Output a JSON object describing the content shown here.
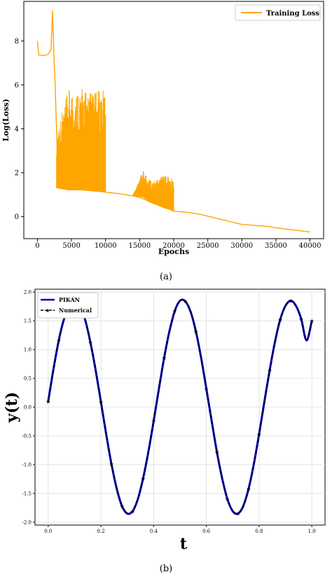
{
  "chart_data": [
    {
      "type": "line",
      "panel_label": "(a)",
      "xlabel": "Epochs",
      "ylabel": "Log(Loss)",
      "xlim": [
        -2000,
        42000
      ],
      "ylim": [
        -1.0,
        9.8
      ],
      "xticks": [
        0,
        5000,
        10000,
        15000,
        20000,
        25000,
        30000,
        35000,
        40000
      ],
      "yticks": [
        0,
        2,
        4,
        6,
        8
      ],
      "legend_position": "top-right",
      "grid": false,
      "series": [
        {
          "name": "Training Loss",
          "color": "#ffa500",
          "x": [
            0,
            200,
            400,
            800,
            1200,
            1600,
            2000,
            2200,
            2400,
            2600,
            2800,
            3000,
            3200,
            3500,
            4000,
            5000,
            6000,
            7000,
            8000,
            9000,
            10000,
            11000,
            12000,
            13000,
            14000,
            15000,
            16000,
            17000,
            18000,
            19000,
            20000,
            22000,
            24000,
            26000,
            28000,
            30000,
            32000,
            34000,
            36000,
            38000,
            40000
          ],
          "y": [
            8.0,
            7.35,
            7.35,
            7.35,
            7.35,
            7.4,
            7.6,
            9.4,
            7.5,
            6.0,
            4.0,
            2.5,
            1.8,
            1.6,
            1.45,
            1.35,
            1.28,
            1.22,
            1.18,
            1.15,
            1.12,
            1.08,
            1.05,
            1.0,
            0.95,
            0.88,
            0.75,
            0.6,
            0.5,
            0.4,
            0.25,
            0.2,
            0.1,
            -0.05,
            -0.2,
            -0.35,
            -0.4,
            -0.45,
            -0.55,
            -0.62,
            -0.7
          ]
        }
      ],
      "oscillation_bands": [
        {
          "x_start": 2800,
          "x_end": 10000,
          "upper": [
            4.0,
            5.8,
            5.9,
            5.7,
            5.8
          ],
          "lower": [
            1.3,
            1.2,
            1.2,
            1.15,
            1.12
          ]
        },
        {
          "x_start": 14000,
          "x_end": 20000,
          "upper": [
            1.0,
            2.1,
            1.6,
            1.9,
            1.7
          ],
          "lower": [
            0.95,
            0.88,
            0.6,
            0.4,
            0.25
          ]
        }
      ]
    },
    {
      "type": "line",
      "panel_label": "(b)",
      "xlabel": "t",
      "ylabel": "y(t)",
      "xlim": [
        -0.05,
        1.05
      ],
      "ylim": [
        -2.05,
        2.05
      ],
      "xticks": [
        0.0,
        0.2,
        0.4,
        0.6,
        0.8,
        1.0
      ],
      "yticks": [
        -2.0,
        -1.5,
        -1.0,
        -0.5,
        0.0,
        0.5,
        1.0,
        1.5,
        2.0
      ],
      "legend_position": "top-left",
      "grid": true,
      "series": [
        {
          "name": "PIKAN",
          "color": "#0000cc",
          "style": "solid"
        },
        {
          "name": "Numerical",
          "color": "#000000",
          "style": "dashed",
          "marker": "star"
        }
      ],
      "function_samples": {
        "t": [
          0.0,
          0.02,
          0.04,
          0.06,
          0.08,
          0.1,
          0.12,
          0.14,
          0.16,
          0.18,
          0.2,
          0.22,
          0.24,
          0.26,
          0.28,
          0.3,
          0.32,
          0.34,
          0.36,
          0.38,
          0.4,
          0.42,
          0.44,
          0.46,
          0.48,
          0.5,
          0.52,
          0.54,
          0.56,
          0.58,
          0.6,
          0.62,
          0.64,
          0.66,
          0.68,
          0.7,
          0.72,
          0.74,
          0.76,
          0.78,
          0.8,
          0.82,
          0.84,
          0.86,
          0.88,
          0.9,
          0.92,
          0.94,
          0.96,
          0.98,
          1.0
        ],
        "y": [
          0.1,
          0.66,
          1.16,
          1.53,
          1.76,
          1.85,
          1.76,
          1.52,
          1.13,
          0.64,
          0.09,
          -0.47,
          -0.99,
          -1.42,
          -1.72,
          -1.85,
          -1.81,
          -1.6,
          -1.24,
          -0.78,
          -0.24,
          0.32,
          0.86,
          1.32,
          1.67,
          1.85,
          1.84,
          1.66,
          1.32,
          0.86,
          0.32,
          -0.24,
          -0.78,
          -1.24,
          -1.6,
          -1.81,
          -1.85,
          -1.72,
          -1.42,
          -0.99,
          -0.47,
          0.09,
          0.64,
          1.13,
          1.52,
          1.76,
          1.85,
          1.76,
          1.53,
          1.16,
          1.5
        ]
      }
    }
  ],
  "caption_a": "(a)",
  "caption_b": "(b)"
}
